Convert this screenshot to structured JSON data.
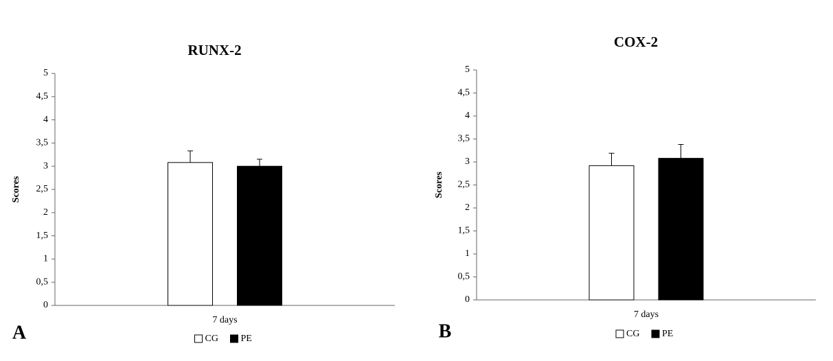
{
  "chart_data": [
    {
      "type": "bar",
      "title": "RUNX-2",
      "panel": "A",
      "ylabel": "Scores",
      "categories": [
        "7 days"
      ],
      "series": [
        {
          "name": "CG",
          "color": "#ffffff",
          "values": [
            3.08
          ],
          "errors": [
            0.25
          ]
        },
        {
          "name": "PE",
          "color": "#000000",
          "values": [
            3.0
          ],
          "errors": [
            0.15
          ]
        }
      ],
      "ylim": [
        0,
        5
      ],
      "yticks": [
        0,
        {
          "value": 0.5,
          "label": "0,5"
        },
        1,
        {
          "value": 1.5,
          "label": "1,5"
        },
        2,
        {
          "value": 2.5,
          "label": "2,5"
        },
        3,
        {
          "value": 3.5,
          "label": "3,5"
        },
        4,
        {
          "value": 4.5,
          "label": "4,5"
        },
        5
      ],
      "grid": false,
      "legend": "bottom"
    },
    {
      "type": "bar",
      "title": "COX-2",
      "panel": "B",
      "ylabel": "Scores",
      "categories": [
        "7 days"
      ],
      "series": [
        {
          "name": "CG",
          "color": "#ffffff",
          "values": [
            2.92
          ],
          "errors": [
            0.27
          ]
        },
        {
          "name": "PE",
          "color": "#000000",
          "values": [
            3.08
          ],
          "errors": [
            0.3
          ]
        }
      ],
      "ylim": [
        0,
        5
      ],
      "yticks": [
        0,
        {
          "value": 0.5,
          "label": "0,5"
        },
        1,
        {
          "value": 1.5,
          "label": "1,5"
        },
        2,
        {
          "value": 2.5,
          "label": "2,5"
        },
        3,
        {
          "value": 3.5,
          "label": "3,5"
        },
        4,
        {
          "value": 4.5,
          "label": "4,5"
        },
        5
      ],
      "grid": false,
      "legend": "bottom"
    }
  ]
}
